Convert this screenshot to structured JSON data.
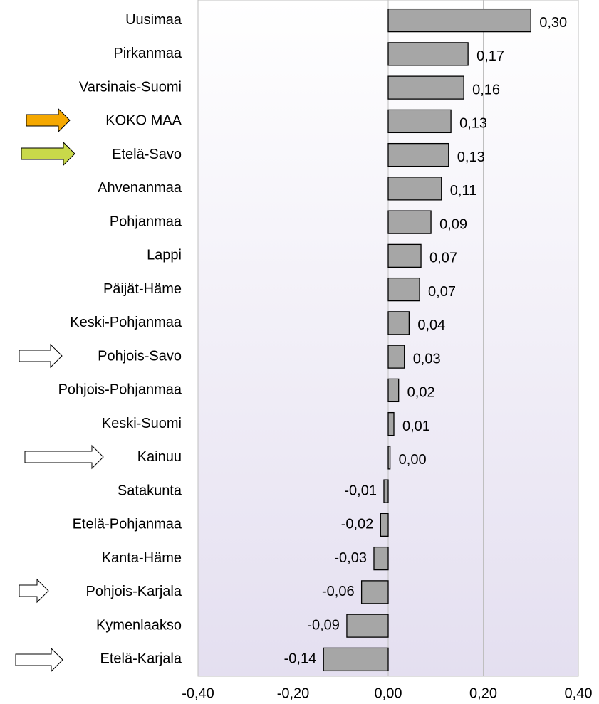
{
  "chart_data": {
    "type": "bar",
    "orientation": "horizontal",
    "categories": [
      "Uusimaa",
      "Pirkanmaa",
      "Varsinais-Suomi",
      "KOKO MAA",
      "Etelä-Savo",
      "Ahvenanmaa",
      "Pohjanmaa",
      "Lappi",
      "Päijät-Häme",
      "Keski-Pohjanmaa",
      "Pohjois-Savo",
      "Pohjois-Pohjanmaa",
      "Keski-Suomi",
      "Kainuu",
      "Satakunta",
      "Etelä-Pohjanmaa",
      "Kanta-Häme",
      "Pohjois-Karjala",
      "Kymenlaakso",
      "Etelä-Karjala"
    ],
    "values": [
      0.3,
      0.168,
      0.159,
      0.132,
      0.127,
      0.112,
      0.09,
      0.069,
      0.066,
      0.044,
      0.034,
      0.022,
      0.012,
      0.004,
      -0.009,
      -0.016,
      -0.03,
      -0.056,
      -0.087,
      -0.136
    ],
    "value_labels": [
      "0,30",
      "0,17",
      "0,16",
      "0,13",
      "0,13",
      "0,11",
      "0,09",
      "0,07",
      "0,07",
      "0,04",
      "0,03",
      "0,02",
      "0,01",
      "0,00",
      "-0,01",
      "-0,02",
      "-0,03",
      "-0,06",
      "-0,09",
      "-0,14"
    ],
    "color": "#a6a6a6",
    "xlim": [
      -0.4,
      0.4
    ],
    "xticks": [
      {
        "value": -0.4,
        "label": "-0,40"
      },
      {
        "value": -0.2,
        "label": "-0,20"
      },
      {
        "value": 0,
        "label": "0,00"
      },
      {
        "value": 0.2,
        "label": "0,20"
      },
      {
        "value": 0.4,
        "label": "0,40"
      }
    ],
    "grid": true
  }
}
